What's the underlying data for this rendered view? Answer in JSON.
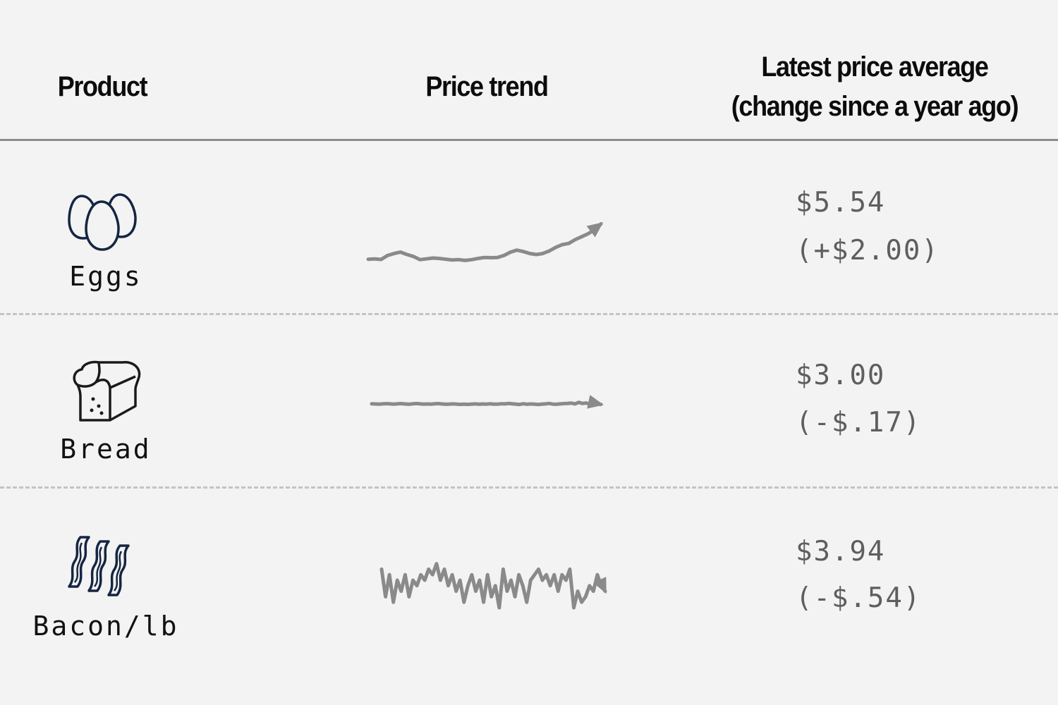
{
  "chart_data": {
    "type": "table",
    "columns": [
      "Product",
      "Price trend",
      "Latest price average",
      "(change since a year ago)"
    ],
    "rows": [
      {
        "product": "Eggs",
        "icon": "eggs-icon",
        "price": "$5.54",
        "change": "(+$2.00)",
        "trend": [
          0.26,
          0.28,
          0.25,
          0.45,
          0.55,
          0.62,
          0.5,
          0.4,
          0.24,
          0.28,
          0.32,
          0.3,
          0.26,
          0.22,
          0.24,
          0.2,
          0.24,
          0.3,
          0.35,
          0.34,
          0.35,
          0.45,
          0.62,
          0.72,
          0.65,
          0.55,
          0.5,
          0.55,
          0.68,
          0.86,
          1.0,
          1.06,
          1.25,
          1.4,
          1.55,
          1.75,
          2.05
        ]
      },
      {
        "product": "Bread",
        "icon": "bread-icon",
        "price": "$3.00",
        "change": "(-$.17)",
        "trend": [
          1.7,
          1.5,
          1.3,
          1.6,
          1.9,
          1.6,
          1.4,
          1.7,
          1.9,
          1.5,
          1.2,
          1.6,
          2.0,
          1.7,
          1.4,
          1.5,
          1.3,
          1.7,
          1.9,
          1.5,
          1.2,
          1.4,
          1.6,
          1.3,
          1.1,
          1.3,
          1.1,
          1.4,
          1.6,
          1.2,
          1.5,
          1.3,
          1.8,
          1.4,
          1.3,
          1.8,
          1.6,
          2.1,
          1.7,
          1.3,
          1.0,
          1.8,
          1.2,
          1.5,
          1.3,
          1.0,
          1.4,
          1.6,
          2.1,
          1.4,
          1.2,
          1.6,
          1.9,
          2.1,
          2.5,
          1.6,
          3.3,
          2.1,
          2.6,
          1.4,
          2.8,
          1.5,
          1.1
        ]
      },
      {
        "product": "Bacon/lb",
        "icon": "bacon-icon",
        "price": "$3.94",
        "change": "(-$.54)",
        "trend": [
          7,
          2,
          6,
          1,
          5,
          3,
          6,
          2,
          5,
          4,
          6,
          5,
          7,
          6,
          8,
          5,
          7,
          4,
          6,
          3,
          5,
          1,
          4,
          6,
          3,
          5,
          1,
          6,
          2,
          4,
          0,
          7,
          3,
          5,
          2,
          6,
          4,
          1,
          5,
          6,
          7,
          5,
          6,
          4,
          6,
          3,
          6,
          5,
          7,
          0,
          3,
          1,
          2,
          4,
          3,
          6,
          4,
          3
        ]
      }
    ]
  }
}
